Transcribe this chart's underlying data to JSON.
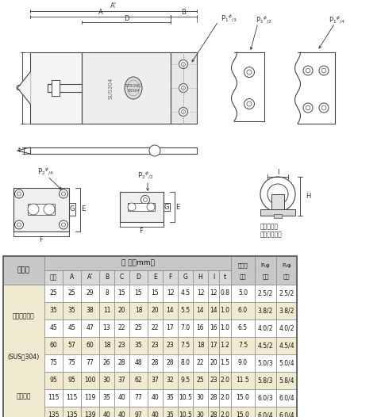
{
  "fig_width": 4.8,
  "fig_height": 5.26,
  "dpi": 100,
  "bg_color": "#ffffff",
  "line_color": "#444444",
  "dim_color": "#333333",
  "table_header_bg": "#c8c8c8",
  "table_sub_bg": "#d8d8d8",
  "table_row_odd": "#ffffff",
  "table_row_even": "#f0ead0",
  "table_left_bg": "#f0ead0",
  "border_color": "#888888",
  "rows": [
    [
      "25",
      "25",
      "29",
      "8",
      "15",
      "15",
      "15",
      "12",
      "4.5",
      "12",
      "12",
      "0.8",
      "5.0",
      "2.5/2",
      "2.5/2"
    ],
    [
      "35",
      "35",
      "38",
      "11",
      "20",
      "18",
      "20",
      "14",
      "5.5",
      "14",
      "14",
      "1.0",
      "6.0",
      "3.8/2",
      "3.8/2"
    ],
    [
      "45",
      "45",
      "47",
      "13",
      "22",
      "25",
      "22",
      "17",
      "7.0",
      "16",
      "16",
      "1.0",
      "6.5",
      "4.0/2",
      "4.0/2"
    ],
    [
      "60",
      "57",
      "60",
      "18",
      "23",
      "35",
      "23",
      "23",
      "7.5",
      "18",
      "17",
      "1.2",
      "7.5",
      "4.5/2",
      "4.5/4"
    ],
    [
      "75",
      "75",
      "77",
      "26",
      "28",
      "48",
      "28",
      "28",
      "8.0",
      "22",
      "20",
      "1.5",
      "9.0",
      "5.0/3",
      "5.0/4"
    ],
    [
      "95",
      "95",
      "100",
      "30",
      "37",
      "62",
      "37",
      "32",
      "9.5",
      "25",
      "23",
      "2.0",
      "11.5",
      "5.8/3",
      "5.8/4"
    ],
    [
      "115",
      "115",
      "119",
      "35",
      "40",
      "77",
      "40",
      "35",
      "10.5",
      "30",
      "28",
      "2.0",
      "15.0",
      "6.0/3",
      "6.0/4"
    ],
    [
      "135",
      "135",
      "139",
      "40",
      "40",
      "97",
      "40",
      "35",
      "10.5",
      "30",
      "28",
      "2.0",
      "15.0",
      "6.0/4",
      "6.0/4"
    ]
  ],
  "sub_labels": [
    "呼称",
    "A",
    "A’",
    "B",
    "C",
    "D",
    "E",
    "F",
    "G",
    "H",
    "I",
    "t"
  ],
  "brand_label": "ステンレス製\n(SUS・304)\n研磨仕上",
  "hinpan_label": "品　種",
  "sunpo_label": "寸 法（mm）",
  "marukan_label": "丸かん\n内径",
  "p1_label": "P₁φ\n穴数",
  "p2_label": "P₂φ\n穴数"
}
